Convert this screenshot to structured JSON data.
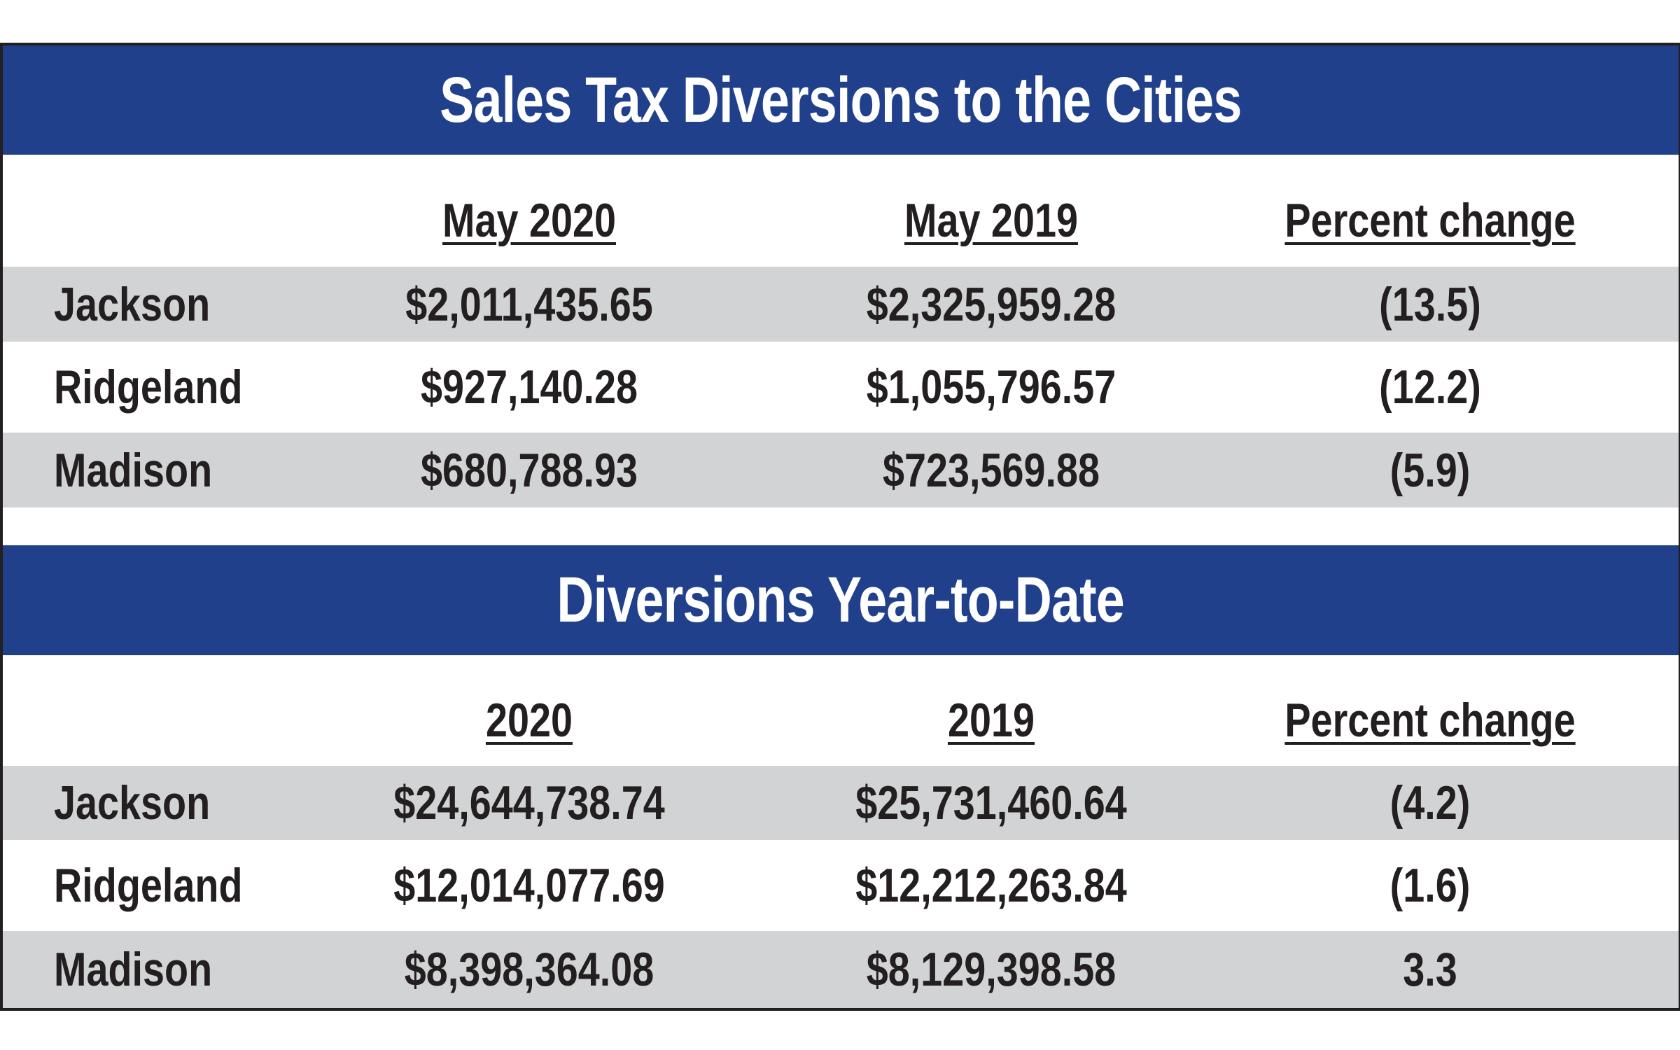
{
  "tables": [
    {
      "title": "Sales Tax Diversions to the Cities",
      "headers": [
        "May 2020",
        "May 2019",
        "Percent change"
      ],
      "rows": [
        {
          "city": "Jackson",
          "a": "$2,011,435.65",
          "b": "$2,325,959.28",
          "pct": "(13.5)"
        },
        {
          "city": "Ridgeland",
          "a": "$927,140.28",
          "b": "$1,055,796.57",
          "pct": "(12.2)"
        },
        {
          "city": "Madison",
          "a": "$680,788.93",
          "b": "$723,569.88",
          "pct": "(5.9)"
        }
      ]
    },
    {
      "title": "Diversions Year-to-Date",
      "headers": [
        "2020",
        "2019",
        "Percent change"
      ],
      "rows": [
        {
          "city": "Jackson",
          "a": "$24,644,738.74",
          "b": "$25,731,460.64",
          "pct": "(4.2)"
        },
        {
          "city": "Ridgeland",
          "a": "$12,014,077.69",
          "b": "$12,212,263.84",
          "pct": "(1.6)"
        },
        {
          "city": "Madison",
          "a": "$8,398,364.08",
          "b": "$8,129,398.58",
          "pct": "3.3"
        }
      ]
    }
  ],
  "colors": {
    "band": "#21408c",
    "stripe": "#d1d3d4",
    "text": "#231f20"
  }
}
